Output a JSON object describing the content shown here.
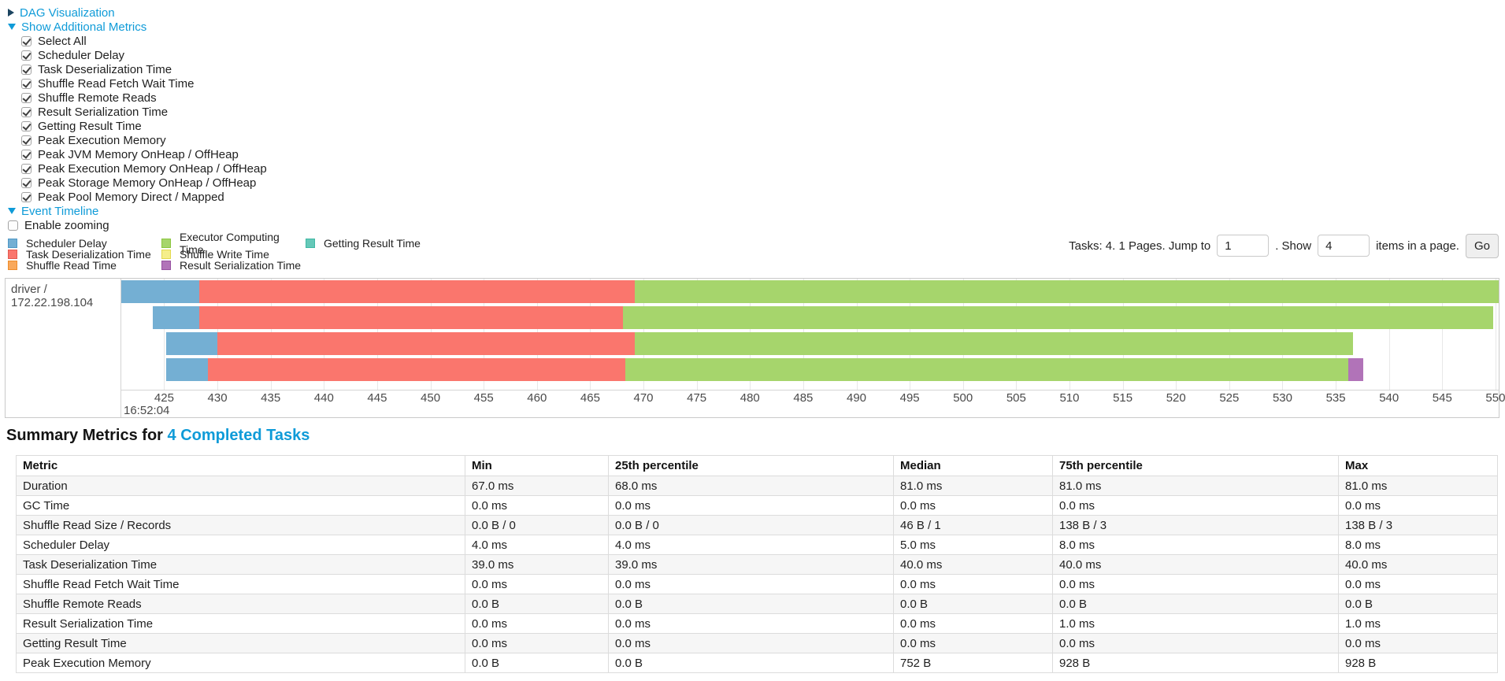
{
  "toggles": {
    "dag": "DAG Visualization",
    "metrics": "Show Additional Metrics",
    "timeline": "Event Timeline"
  },
  "additional_metrics": {
    "items": [
      "Select All",
      "Scheduler Delay",
      "Task Deserialization Time",
      "Shuffle Read Fetch Wait Time",
      "Shuffle Remote Reads",
      "Result Serialization Time",
      "Getting Result Time",
      "Peak Execution Memory",
      "Peak JVM Memory OnHeap / OffHeap",
      "Peak Execution Memory OnHeap / OffHeap",
      "Peak Storage Memory OnHeap / OffHeap",
      "Peak Pool Memory Direct / Mapped"
    ]
  },
  "enable_zooming_label": "Enable zooming",
  "colors": {
    "scheduler_delay": {
      "fill": "#74AFD3",
      "border": "#4F98C6"
    },
    "task_deserialization": {
      "fill": "#FA766D",
      "border": "#E35B51"
    },
    "shuffle_read": {
      "fill": "#F9A95C",
      "border": "#EE8D2B"
    },
    "executor_computing": {
      "fill": "#A6D56C",
      "border": "#8BC63F"
    },
    "shuffle_write": {
      "fill": "#F5EE8A",
      "border": "#E2D94F"
    },
    "result_serialization": {
      "fill": "#B173B8",
      "border": "#9751A1"
    },
    "getting_result": {
      "fill": "#65C8B8",
      "border": "#3FB8A4"
    }
  },
  "legend": {
    "columns": [
      [
        {
          "label": "Scheduler Delay",
          "color": "scheduler_delay"
        },
        {
          "label": "Task Deserialization Time",
          "color": "task_deserialization"
        },
        {
          "label": "Shuffle Read Time",
          "color": "shuffle_read"
        }
      ],
      [
        {
          "label": "Executor Computing Time",
          "color": "executor_computing"
        },
        {
          "label": "Shuffle Write Time",
          "color": "shuffle_write"
        },
        {
          "label": "Result Serialization Time",
          "color": "result_serialization"
        }
      ],
      [
        {
          "label": "Getting Result Time",
          "color": "getting_result"
        }
      ]
    ]
  },
  "pagination": {
    "tasks_text": "Tasks: 4. 1 Pages. Jump to",
    "jump_value": "1",
    "show_text": ". Show",
    "page_size_value": "4",
    "items_text": "items in a page.",
    "go_label": "Go"
  },
  "chart_data": {
    "type": "timeline",
    "group_label": "driver / 172.22.198.104",
    "x_axis": {
      "min": 420.9,
      "max": 550.3,
      "tick_step": 5,
      "ticks": [
        425,
        430,
        435,
        440,
        445,
        450,
        455,
        460,
        465,
        470,
        475,
        480,
        485,
        490,
        495,
        500,
        505,
        510,
        515,
        520,
        525,
        530,
        535,
        540,
        545,
        550
      ],
      "major_label": "16:52:04"
    },
    "tasks": [
      {
        "segments": [
          {
            "metric": "scheduler_delay",
            "start": 420.9,
            "end": 428.3
          },
          {
            "metric": "task_deserialization",
            "start": 428.3,
            "end": 469.2
          },
          {
            "metric": "executor_computing",
            "start": 469.2,
            "end": 550.3
          }
        ]
      },
      {
        "segments": [
          {
            "metric": "scheduler_delay",
            "start": 423.9,
            "end": 428.3
          },
          {
            "metric": "task_deserialization",
            "start": 428.3,
            "end": 468.1
          },
          {
            "metric": "executor_computing",
            "start": 468.1,
            "end": 549.8
          }
        ]
      },
      {
        "segments": [
          {
            "metric": "scheduler_delay",
            "start": 425.2,
            "end": 430.0
          },
          {
            "metric": "task_deserialization",
            "start": 430.0,
            "end": 469.2
          },
          {
            "metric": "executor_computing",
            "start": 469.2,
            "end": 536.6
          }
        ]
      },
      {
        "segments": [
          {
            "metric": "scheduler_delay",
            "start": 425.2,
            "end": 429.1
          },
          {
            "metric": "task_deserialization",
            "start": 429.1,
            "end": 468.3
          },
          {
            "metric": "executor_computing",
            "start": 468.3,
            "end": 536.2
          },
          {
            "metric": "result_serialization",
            "start": 536.2,
            "end": 537.6
          }
        ]
      }
    ]
  },
  "summary": {
    "heading_prefix": "Summary Metrics for ",
    "heading_link": "4 Completed Tasks",
    "table": {
      "headers": [
        "Metric",
        "Min",
        "25th percentile",
        "Median",
        "75th percentile",
        "Max"
      ],
      "rows": [
        [
          "Duration",
          "67.0 ms",
          "68.0 ms",
          "81.0 ms",
          "81.0 ms",
          "81.0 ms"
        ],
        [
          "GC Time",
          "0.0 ms",
          "0.0 ms",
          "0.0 ms",
          "0.0 ms",
          "0.0 ms"
        ],
        [
          "Shuffle Read Size / Records",
          "0.0 B / 0",
          "0.0 B / 0",
          "46 B / 1",
          "138 B / 3",
          "138 B / 3"
        ],
        [
          "Scheduler Delay",
          "4.0 ms",
          "4.0 ms",
          "5.0 ms",
          "8.0 ms",
          "8.0 ms"
        ],
        [
          "Task Deserialization Time",
          "39.0 ms",
          "39.0 ms",
          "40.0 ms",
          "40.0 ms",
          "40.0 ms"
        ],
        [
          "Shuffle Read Fetch Wait Time",
          "0.0 ms",
          "0.0 ms",
          "0.0 ms",
          "0.0 ms",
          "0.0 ms"
        ],
        [
          "Shuffle Remote Reads",
          "0.0 B",
          "0.0 B",
          "0.0 B",
          "0.0 B",
          "0.0 B"
        ],
        [
          "Result Serialization Time",
          "0.0 ms",
          "0.0 ms",
          "0.0 ms",
          "1.0 ms",
          "1.0 ms"
        ],
        [
          "Getting Result Time",
          "0.0 ms",
          "0.0 ms",
          "0.0 ms",
          "0.0 ms",
          "0.0 ms"
        ],
        [
          "Peak Execution Memory",
          "0.0 B",
          "0.0 B",
          "752 B",
          "928 B",
          "928 B"
        ]
      ]
    }
  }
}
